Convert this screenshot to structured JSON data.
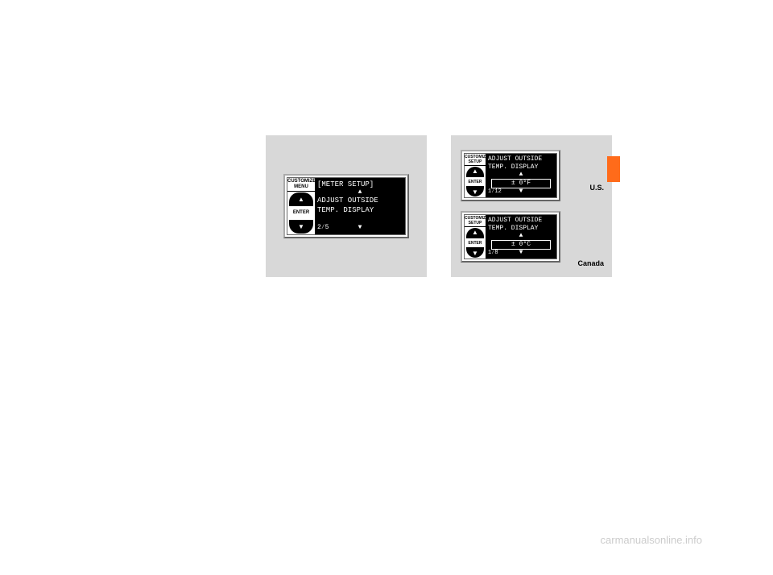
{
  "left_display": {
    "header_line1": "CUSTOMIZE",
    "header_line2": "MENU",
    "enter_label": "ENTER",
    "screen_title": "[METER SETUP]",
    "up_arrow": "▲",
    "menu_line1": "ADJUST OUTSIDE",
    "menu_line2": "TEMP. DISPLAY",
    "counter": "2⁄5",
    "down_arrow": "▼"
  },
  "us_display": {
    "header_line1": "CUSTOMIZE",
    "header_line2": "SETUP",
    "enter_label": "ENTER",
    "line1": "ADJUST OUTSIDE",
    "line2": "TEMP. DISPLAY",
    "up_arrow": "▲",
    "value": "± 0°F",
    "counter": "1⁄12",
    "down_arrow": "▼",
    "region": "U.S."
  },
  "ca_display": {
    "header_line1": "CUSTOMIZE",
    "header_line2": "SETUP",
    "enter_label": "ENTER",
    "line1": "ADJUST OUTSIDE",
    "line2": "TEMP. DISPLAY",
    "up_arrow": "▲",
    "value": "± 0°C",
    "counter": "1⁄8",
    "down_arrow": "▼",
    "region": "Canada"
  },
  "watermark": "carmanualsonline.info",
  "colors": {
    "panel_bg": "#d8d8d8",
    "screen_bg": "#000000",
    "screen_fg": "#ffffff",
    "orange_tab": "#ff6b1a",
    "watermark": "#cccccc"
  }
}
